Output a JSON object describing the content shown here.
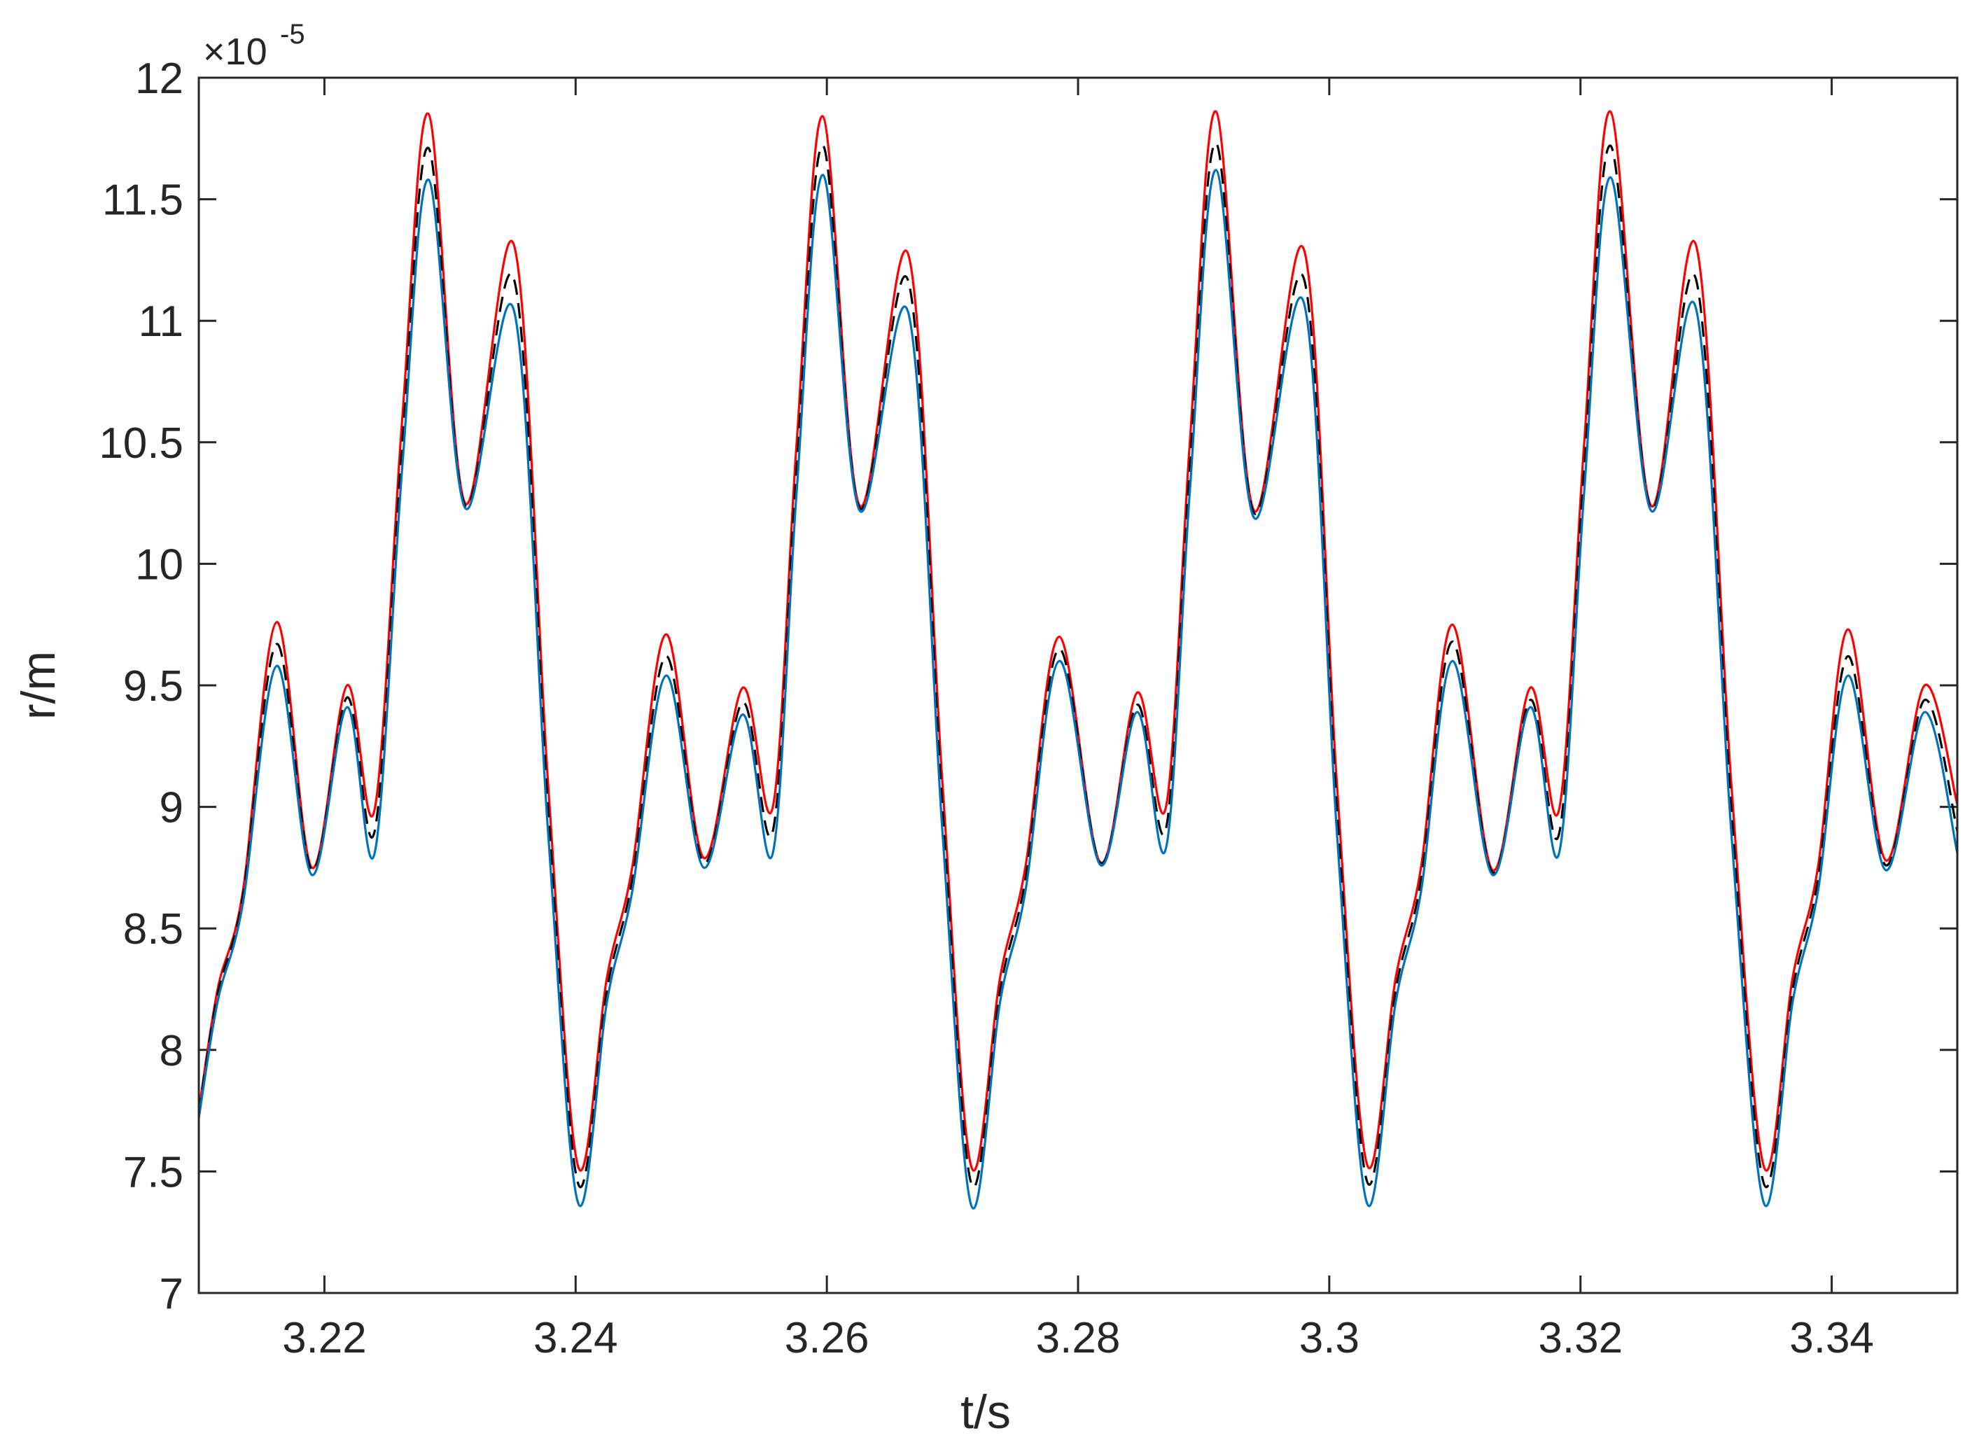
{
  "chart_data": {
    "type": "line",
    "xlabel": "t/s",
    "ylabel": "r/m",
    "y_multiplier": "×10",
    "y_multiplier_exponent": "-5",
    "x": [
      3.21,
      3.2115,
      3.2135,
      3.2162,
      3.219,
      3.2218,
      3.224,
      3.2262,
      3.2283,
      3.2312,
      3.2351,
      3.2378,
      3.2402,
      3.2425,
      3.2445,
      3.2472,
      3.2502,
      3.2533,
      3.2557,
      3.2576,
      3.2597,
      3.2626,
      3.2665,
      3.2692,
      3.2715,
      3.2738,
      3.2758,
      3.2785,
      3.2818,
      3.2847,
      3.287,
      3.2889,
      3.291,
      3.294,
      3.298,
      3.3006,
      3.303,
      3.3053,
      3.3073,
      3.3098,
      3.313,
      3.316,
      3.3183,
      3.3203,
      3.3224,
      3.3256,
      3.3292,
      3.332,
      3.3346,
      3.3369,
      3.3389,
      3.3413,
      3.3443,
      3.3474,
      3.35
    ],
    "series": [
      {
        "color": "#ff0000",
        "dashed": false,
        "values": [
          7.75,
          8.25,
          8.65,
          9.76,
          8.75,
          9.5,
          8.99,
          10.6,
          11.85,
          10.25,
          11.31,
          9.1,
          7.52,
          8.3,
          8.75,
          9.71,
          8.79,
          9.49,
          9.0,
          10.5,
          11.84,
          10.24,
          11.27,
          9.1,
          7.52,
          8.3,
          8.75,
          9.7,
          8.77,
          9.47,
          9.0,
          10.5,
          11.86,
          10.22,
          11.29,
          9.1,
          7.53,
          8.3,
          8.75,
          9.75,
          8.74,
          9.49,
          8.99,
          10.5,
          11.86,
          10.24,
          11.31,
          9.1,
          7.52,
          8.3,
          8.75,
          9.73,
          8.78,
          9.5,
          9.01
        ]
      },
      {
        "color": "#000000",
        "dashed": true,
        "values": [
          7.74,
          8.23,
          8.63,
          9.67,
          8.74,
          9.45,
          8.9,
          10.5,
          11.71,
          10.24,
          11.17,
          9.0,
          7.45,
          8.25,
          8.7,
          9.62,
          8.77,
          9.43,
          8.9,
          10.4,
          11.72,
          10.23,
          11.16,
          9.0,
          7.45,
          8.25,
          8.7,
          9.65,
          8.77,
          9.42,
          8.91,
          10.4,
          11.73,
          10.21,
          11.17,
          9.0,
          7.46,
          8.25,
          8.7,
          9.68,
          8.73,
          9.44,
          8.89,
          10.4,
          11.72,
          10.23,
          11.17,
          9.0,
          7.45,
          8.25,
          8.7,
          9.62,
          8.76,
          9.44,
          8.9
        ]
      },
      {
        "color": "#0072bd",
        "dashed": false,
        "values": [
          7.72,
          8.2,
          8.6,
          9.58,
          8.72,
          9.41,
          8.81,
          10.4,
          11.58,
          10.23,
          11.04,
          8.9,
          7.37,
          8.2,
          8.65,
          9.54,
          8.75,
          9.38,
          8.81,
          10.3,
          11.6,
          10.22,
          11.03,
          8.9,
          7.36,
          8.2,
          8.65,
          9.6,
          8.76,
          9.39,
          8.83,
          10.3,
          11.62,
          10.19,
          11.07,
          8.9,
          7.37,
          8.2,
          8.65,
          9.6,
          8.72,
          9.41,
          8.81,
          10.3,
          11.59,
          10.22,
          11.05,
          8.9,
          7.37,
          8.2,
          8.65,
          9.54,
          8.74,
          9.39,
          8.81
        ]
      }
    ],
    "xlim": [
      3.21,
      3.35
    ],
    "xticks": [
      3.22,
      3.24,
      3.26,
      3.28,
      3.3,
      3.32,
      3.34
    ],
    "ylim": [
      7,
      12
    ],
    "yticks": [
      7,
      7.5,
      8,
      8.5,
      9,
      9.5,
      10,
      10.5,
      11,
      11.5,
      12
    ],
    "grid": false
  }
}
